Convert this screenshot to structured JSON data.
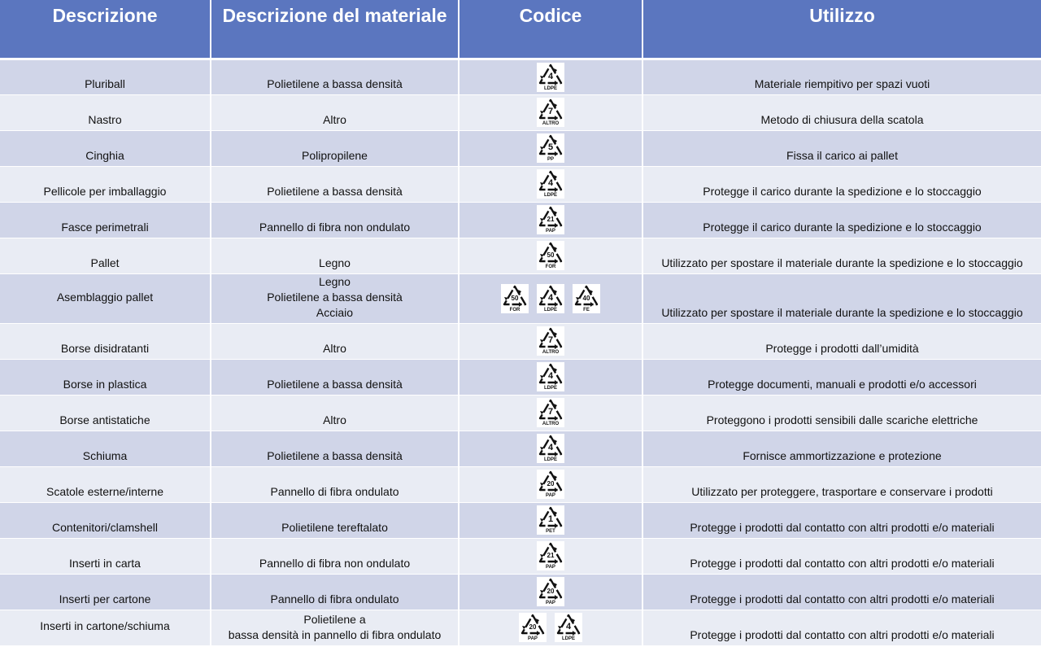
{
  "headers": {
    "col1": "Descrizione",
    "col2": "Descrizione del materiale",
    "col3": "Codice",
    "col4": "Utilizzo"
  },
  "rows": [
    {
      "descrizione": "Pluriball",
      "materiale": [
        "Polietilene a bassa densità"
      ],
      "codes": [
        {
          "num": "4",
          "label": "LDPE"
        }
      ],
      "utilizzo": "Materiale riempitivo per spazi vuoti"
    },
    {
      "descrizione": "Nastro",
      "materiale": [
        "Altro"
      ],
      "codes": [
        {
          "num": "7",
          "label": "ALTRO"
        }
      ],
      "utilizzo": "Metodo di chiusura della scatola"
    },
    {
      "descrizione": "Cinghia",
      "materiale": [
        "Polipropilene"
      ],
      "codes": [
        {
          "num": "5",
          "label": "PP"
        }
      ],
      "utilizzo": "Fissa il carico ai pallet"
    },
    {
      "descrizione": "Pellicole per imballaggio",
      "materiale": [
        "Polietilene a bassa densità"
      ],
      "codes": [
        {
          "num": "4",
          "label": "LDPE"
        }
      ],
      "utilizzo": "Protegge il carico durante la spedizione e lo stoccaggio"
    },
    {
      "descrizione": "Fasce perimetrali",
      "materiale": [
        "Pannello di fibra non ondulato"
      ],
      "codes": [
        {
          "num": "21",
          "label": "PAP"
        }
      ],
      "utilizzo": "Protegge il carico durante la spedizione e lo stoccaggio"
    },
    {
      "descrizione": "Pallet",
      "materiale": [
        "Legno"
      ],
      "codes": [
        {
          "num": "50",
          "label": "FOR"
        }
      ],
      "utilizzo": "Utilizzato per spostare il materiale durante la spedizione e lo stoccaggio"
    },
    {
      "descrizione": "Asemblaggio pallet",
      "materiale": [
        "Legno",
        "Polietilene a bassa densità",
        "Acciaio"
      ],
      "codes": [
        {
          "num": "50",
          "label": "FOR"
        },
        {
          "num": "4",
          "label": "LDPE"
        },
        {
          "num": "40",
          "label": "FE"
        }
      ],
      "utilizzo": "Utilizzato per spostare il materiale durante la spedizione e lo stoccaggio"
    },
    {
      "descrizione": "Borse disidratanti",
      "materiale": [
        "Altro"
      ],
      "codes": [
        {
          "num": "7",
          "label": "ALTRO"
        }
      ],
      "utilizzo": "Protegge i prodotti dall’umidità"
    },
    {
      "descrizione": "Borse in plastica",
      "materiale": [
        "Polietilene a bassa densità"
      ],
      "codes": [
        {
          "num": "4",
          "label": "LDPE"
        }
      ],
      "utilizzo": "Protegge documenti, manuali e prodotti e/o accessori"
    },
    {
      "descrizione": "Borse antistatiche",
      "materiale": [
        "Altro"
      ],
      "codes": [
        {
          "num": "7",
          "label": "ALTRO"
        }
      ],
      "utilizzo": "Proteggono i prodotti sensibili dalle scariche elettriche"
    },
    {
      "descrizione": "Schiuma",
      "materiale": [
        "Polietilene a bassa densità"
      ],
      "codes": [
        {
          "num": "4",
          "label": "LDPE"
        }
      ],
      "utilizzo": "Fornisce ammortizzazione e protezione"
    },
    {
      "descrizione": "Scatole esterne/interne",
      "materiale": [
        "Pannello di fibra ondulato"
      ],
      "codes": [
        {
          "num": "20",
          "label": "PAP"
        }
      ],
      "utilizzo": "Utilizzato per proteggere, trasportare e conservare i prodotti"
    },
    {
      "descrizione": "Contenitori/clamshell",
      "materiale": [
        "Polietilene tereftalato"
      ],
      "codes": [
        {
          "num": "1",
          "label": "PET"
        }
      ],
      "utilizzo": "Protegge i prodotti dal contatto con altri prodotti e/o materiali"
    },
    {
      "descrizione": "Inserti in carta",
      "materiale": [
        "Pannello di fibra non ondulato"
      ],
      "codes": [
        {
          "num": "21",
          "label": "PAP"
        }
      ],
      "utilizzo": "Protegge i prodotti dal contatto con altri prodotti e/o materiali"
    },
    {
      "descrizione": "Inserti per cartone",
      "materiale": [
        "Pannello di fibra ondulato"
      ],
      "codes": [
        {
          "num": "20",
          "label": "PAP"
        }
      ],
      "utilizzo": "Protegge i prodotti dal contatto con altri prodotti e/o materiali"
    },
    {
      "descrizione": "Inserti in cartone/schiuma",
      "materiale": [
        "Polietilene a",
        "bassa densità in pannello di fibra ondulato"
      ],
      "codes": [
        {
          "num": "20",
          "label": "PAP"
        },
        {
          "num": "4",
          "label": "LDPE"
        }
      ],
      "utilizzo": "Protegge i prodotti dal contatto con altri prodotti e/o materiali"
    }
  ]
}
